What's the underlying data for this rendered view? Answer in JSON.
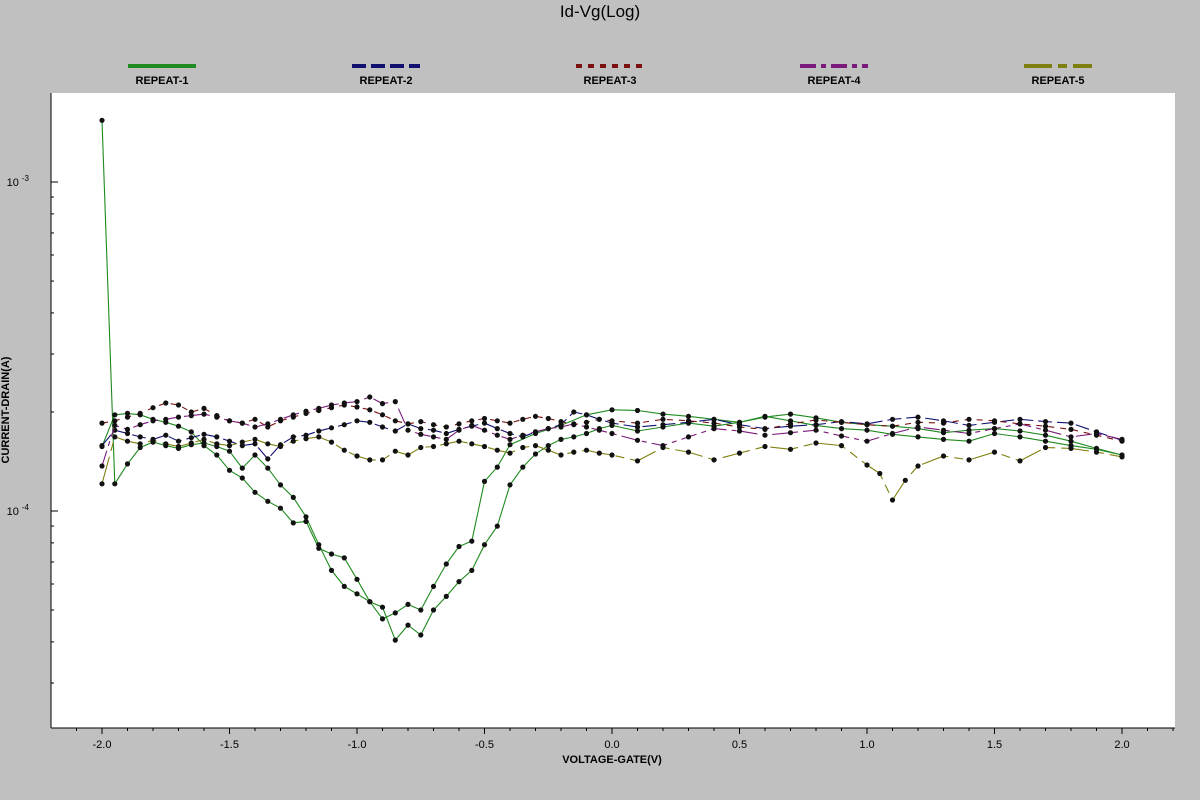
{
  "chart_data": {
    "type": "line",
    "title": "Id-Vg(Log)",
    "xlabel": "VOLTAGE-GATE(V)",
    "ylabel": "CURRENT-DRAIN(A)",
    "xlim": [
      -2.2,
      2.2
    ],
    "ylim": [
      4.5e-05,
      0.0017
    ],
    "y_scale": "log",
    "grid": false,
    "legend_position": "top",
    "x_ticks": [
      {
        "value": -2.0,
        "label": "-2.0"
      },
      {
        "value": -1.5,
        "label": "-1.5"
      },
      {
        "value": -1.0,
        "label": "-1.0"
      },
      {
        "value": -0.5,
        "label": "-0.5"
      },
      {
        "value": 0.0,
        "label": "0.0"
      },
      {
        "value": 0.5,
        "label": "0.5"
      },
      {
        "value": 1.0,
        "label": "1.0"
      },
      {
        "value": 1.5,
        "label": "1.5"
      },
      {
        "value": 2.0,
        "label": "2.0"
      }
    ],
    "y_ticks": [
      {
        "value": 0.001,
        "base": "10",
        "exp": "-3"
      },
      {
        "value": 0.0001,
        "base": "10",
        "exp": "-4"
      }
    ],
    "series": [
      {
        "name": "REPEAT-1",
        "color": "#1f8a1f",
        "dash": "",
        "x": [
          -2.0,
          -1.95,
          -1.9,
          -1.85,
          -1.8,
          -1.75,
          -1.7,
          -1.65,
          -1.6,
          -1.55,
          -1.5,
          -1.45,
          -1.4,
          -1.35,
          -1.3,
          -1.25,
          -1.2,
          -1.15,
          -1.1,
          -1.05,
          -1.0,
          -0.95,
          -0.9,
          -0.85,
          -0.8,
          -0.75,
          -0.7,
          -0.65,
          -0.6,
          -0.55,
          -0.5,
          -0.45,
          -0.4,
          -0.35,
          -0.3,
          -0.25,
          -0.2,
          -0.15,
          -0.1,
          -0.05,
          0.0,
          0.1,
          0.2,
          0.3,
          0.4,
          0.5,
          0.6,
          0.7,
          0.8,
          0.9,
          1.0,
          1.1,
          1.2,
          1.3,
          1.4,
          1.5,
          1.6,
          1.7,
          1.8,
          1.9,
          2.0,
          1.9,
          1.8,
          1.7,
          1.6,
          1.5,
          1.4,
          1.3,
          1.2,
          1.1,
          1.0,
          0.9,
          0.8,
          0.7,
          0.6,
          0.5,
          0.4,
          0.3,
          0.2,
          0.1,
          0.0,
          -0.1,
          -0.2,
          -0.3,
          -0.4,
          -0.45,
          -0.5,
          -0.55,
          -0.6,
          -0.65,
          -0.7,
          -0.75,
          -0.8,
          -0.85,
          -0.9,
          -0.95,
          -1.0,
          -1.05,
          -1.1,
          -1.15,
          -1.2,
          -1.25,
          -1.3,
          -1.35,
          -1.4,
          -1.45,
          -1.5,
          -1.55,
          -1.6,
          -1.65,
          -1.7,
          -1.75,
          -1.8,
          -1.85,
          -1.9,
          -1.95,
          -2.0
        ],
        "values": [
          0.00154,
          0.000121,
          0.000139,
          0.000156,
          0.000162,
          0.000158,
          0.000155,
          0.000159,
          0.000161,
          0.000157,
          0.000152,
          0.000135,
          0.000148,
          0.000135,
          0.00012,
          0.00011,
          9.6e-05,
          7.9e-05,
          6.6e-05,
          5.9e-05,
          5.6e-05,
          5.3e-05,
          5.1e-05,
          4.05e-05,
          4.5e-05,
          4.2e-05,
          5e-05,
          5.5e-05,
          6.1e-05,
          6.6e-05,
          7.9e-05,
          9e-05,
          0.00012,
          0.000136,
          0.000149,
          0.000158,
          0.000165,
          0.000168,
          0.000172,
          0.000178,
          0.000182,
          0.000175,
          0.00018,
          0.000185,
          0.000181,
          0.000186,
          0.000194,
          0.000188,
          0.000182,
          0.000178,
          0.000176,
          0.000171,
          0.000168,
          0.000165,
          0.000163,
          0.000172,
          0.000168,
          0.000163,
          0.000158,
          0.000154,
          0.000148,
          0.000155,
          0.000163,
          0.00017,
          0.000175,
          0.000178,
          0.000176,
          0.000173,
          0.000178,
          0.000181,
          0.000183,
          0.000186,
          0.000192,
          0.000197,
          0.000193,
          0.000186,
          0.00019,
          0.000194,
          0.000197,
          0.000202,
          0.000203,
          0.000196,
          0.000182,
          0.000172,
          0.000159,
          0.000136,
          0.000123,
          8.1e-05,
          7.8e-05,
          6.9e-05,
          5.9e-05,
          5e-05,
          5.2e-05,
          4.9e-05,
          4.7e-05,
          5.3e-05,
          6.2e-05,
          7.2e-05,
          7.4e-05,
          7.7e-05,
          9.3e-05,
          9.2e-05,
          0.000102,
          0.000107,
          0.000114,
          0.000126,
          0.000133,
          0.000148,
          0.000158,
          0.000174,
          0.000181,
          0.000186,
          0.00019,
          0.000196,
          0.000198,
          0.000196,
          0.000157
        ]
      },
      {
        "name": "REPEAT-2",
        "color": "#101070",
        "dash": "14 5",
        "x": [
          -2.0,
          -1.95,
          -1.9,
          -1.85,
          -1.8,
          -1.75,
          -1.7,
          -1.65,
          -1.6,
          -1.55,
          -1.5,
          -1.45,
          -1.4,
          -1.35,
          -1.3,
          -1.25,
          -1.2,
          -1.15,
          -1.1,
          -1.05,
          -1.0,
          -0.95,
          -0.9,
          -0.85,
          -0.8,
          -0.75,
          -0.7,
          -0.65,
          -0.6,
          -0.55,
          -0.5,
          -0.45,
          -0.4,
          -0.35,
          -0.3,
          -0.25,
          -0.2,
          -0.15,
          -0.1,
          -0.05,
          0.0,
          0.1,
          0.2,
          0.3,
          0.4,
          0.5,
          0.6,
          0.7,
          0.8,
          0.9,
          1.0,
          1.1,
          1.2,
          1.3,
          1.4,
          1.5,
          1.6,
          1.7,
          1.8,
          1.9,
          2.0
        ],
        "values": [
          0.000158,
          0.000176,
          0.000172,
          0.000168,
          0.000165,
          0.00017,
          0.000163,
          0.000167,
          0.000171,
          0.000168,
          0.000163,
          0.000158,
          0.00016,
          0.000144,
          0.000159,
          0.000168,
          0.00017,
          0.000175,
          0.000179,
          0.000183,
          0.000188,
          0.000186,
          0.00018,
          0.000175,
          0.000184,
          0.000178,
          0.000176,
          0.000172,
          0.000177,
          0.000181,
          0.000185,
          0.000178,
          0.000172,
          0.000168,
          0.000174,
          0.000178,
          0.000183,
          0.0002,
          0.000196,
          0.00019,
          0.000185,
          0.00018,
          0.000183,
          0.000186,
          0.00019,
          0.000183,
          0.000178,
          0.000181,
          0.000183,
          0.000187,
          0.000184,
          0.00019,
          0.000193,
          0.000188,
          0.000182,
          0.000186,
          0.00019,
          0.000187,
          0.000185,
          0.000174,
          0.000164
        ]
      },
      {
        "name": "REPEAT-3",
        "color": "#7a1010",
        "dash": "6 6",
        "x": [
          -2.0,
          -1.95,
          -1.9,
          -1.85,
          -1.8,
          -1.75,
          -1.7,
          -1.65,
          -1.6,
          -1.55,
          -1.5,
          -1.45,
          -1.4,
          -1.35,
          -1.3,
          -1.25,
          -1.2,
          -1.15,
          -1.1,
          -1.05,
          -1.0,
          -0.95,
          -0.9,
          -0.85,
          -0.8,
          -0.75,
          -0.7,
          -0.65,
          -0.6,
          -0.55,
          -0.5,
          -0.45,
          -0.4,
          -0.35,
          -0.3,
          -0.25,
          -0.2,
          -0.15,
          -0.1,
          -0.05,
          0.0,
          0.1,
          0.2,
          0.3,
          0.4,
          0.5,
          0.6,
          0.7,
          0.8,
          0.9,
          1.0,
          1.1,
          1.2,
          1.3,
          1.4,
          1.5,
          1.6,
          1.7,
          1.8,
          1.9,
          2.0
        ],
        "values": [
          0.000185,
          0.000188,
          0.000193,
          0.000198,
          0.000206,
          0.000213,
          0.00021,
          0.0002,
          0.000205,
          0.000195,
          0.000188,
          0.000185,
          0.00019,
          0.00018,
          0.000188,
          0.000193,
          0.000198,
          0.000202,
          0.000206,
          0.00021,
          0.000207,
          0.000203,
          0.000196,
          0.000188,
          0.000184,
          0.000187,
          0.000183,
          0.00018,
          0.000184,
          0.000188,
          0.000191,
          0.000188,
          0.000185,
          0.00019,
          0.000194,
          0.000191,
          0.000187,
          0.000183,
          0.000186,
          0.00019,
          0.000188,
          0.000185,
          0.00019,
          0.000188,
          0.000185,
          0.00018,
          0.000177,
          0.000184,
          0.000189,
          0.000186,
          0.000183,
          0.000181,
          0.000186,
          0.000185,
          0.00019,
          0.000188,
          0.000184,
          0.000181,
          0.000177,
          0.00017,
          0.000163
        ]
      },
      {
        "name": "REPEAT-4",
        "color": "#7a1a7a",
        "dash": "16 5 5 5",
        "x": [
          -2.0,
          -1.95,
          -1.9,
          -1.85,
          -1.8,
          -1.75,
          -1.7,
          -1.65,
          -1.6,
          -1.55,
          -1.5,
          -1.45,
          -1.4,
          -1.35,
          -1.3,
          -1.25,
          -1.2,
          -1.15,
          -1.1,
          -1.05,
          -1.0,
          -0.95,
          -0.9,
          -0.85,
          -0.8,
          -0.75,
          -0.7,
          -0.65,
          -0.6,
          -0.55,
          -0.5,
          -0.45,
          -0.4,
          -0.35,
          -0.3,
          -0.25,
          -0.2,
          -0.15,
          -0.1,
          -0.05,
          0.0,
          0.1,
          0.2,
          0.3,
          0.4,
          0.5,
          0.6,
          0.7,
          0.8,
          0.9,
          1.0,
          1.1,
          1.2,
          1.3,
          1.4,
          1.5,
          1.6,
          1.7,
          1.8,
          1.9,
          2.0
        ],
        "values": [
          0.000137,
          0.000182,
          0.000177,
          0.000183,
          0.000188,
          0.00019,
          0.000193,
          0.000195,
          0.000197,
          0.000193,
          0.000188,
          0.000185,
          0.00018,
          0.000184,
          0.00019,
          0.000196,
          0.000201,
          0.000205,
          0.00021,
          0.000213,
          0.000215,
          0.000222,
          0.000212,
          0.000215,
          0.000176,
          0.000171,
          0.000168,
          0.000165,
          0.000176,
          0.000182,
          0.000176,
          0.00017,
          0.000165,
          0.00017,
          0.000174,
          0.000178,
          0.00018,
          0.000184,
          0.00018,
          0.000176,
          0.000172,
          0.000164,
          0.000158,
          0.000168,
          0.000178,
          0.000175,
          0.00017,
          0.000173,
          0.000176,
          0.000169,
          0.000163,
          0.000172,
          0.00018,
          0.000176,
          0.000172,
          0.000178,
          0.000184,
          0.000176,
          0.000168,
          0.000172,
          0.000165
        ]
      },
      {
        "name": "REPEAT-5",
        "color": "#7f7f10",
        "dash": "28 6 9 6",
        "x": [
          -2.0,
          -1.95,
          -1.9,
          -1.85,
          -1.8,
          -1.75,
          -1.7,
          -1.65,
          -1.6,
          -1.55,
          -1.5,
          -1.45,
          -1.4,
          -1.35,
          -1.3,
          -1.25,
          -1.2,
          -1.15,
          -1.1,
          -1.05,
          -1.0,
          -0.95,
          -0.9,
          -0.85,
          -0.8,
          -0.75,
          -0.7,
          -0.65,
          -0.6,
          -0.55,
          -0.5,
          -0.45,
          -0.4,
          -0.35,
          -0.3,
          -0.25,
          -0.2,
          -0.15,
          -0.1,
          -0.05,
          0.0,
          0.1,
          0.2,
          0.3,
          0.4,
          0.5,
          0.6,
          0.7,
          0.8,
          0.9,
          1.0,
          1.05,
          1.1,
          1.15,
          1.2,
          1.3,
          1.4,
          1.5,
          1.6,
          1.7,
          1.8,
          1.9,
          2.0
        ],
        "values": [
          0.000121,
          0.000168,
          0.000163,
          0.00016,
          0.000164,
          0.00016,
          0.000157,
          0.000161,
          0.000165,
          0.00016,
          0.000158,
          0.000162,
          0.000165,
          0.00016,
          0.000157,
          0.000163,
          0.000166,
          0.000168,
          0.000162,
          0.000153,
          0.000147,
          0.000143,
          0.000143,
          0.000152,
          0.000148,
          0.000156,
          0.000157,
          0.00016,
          0.000163,
          0.00016,
          0.000157,
          0.000153,
          0.00015,
          0.000156,
          0.000158,
          0.000153,
          0.000148,
          0.000151,
          0.000153,
          0.00015,
          0.000148,
          0.000142,
          0.000156,
          0.000151,
          0.000143,
          0.00015,
          0.000157,
          0.000154,
          0.000161,
          0.000158,
          0.000138,
          0.00013,
          0.000108,
          0.000124,
          0.000137,
          0.000147,
          0.000143,
          0.000151,
          0.000142,
          0.000156,
          0.000155,
          0.000151,
          0.000146
        ]
      }
    ]
  }
}
